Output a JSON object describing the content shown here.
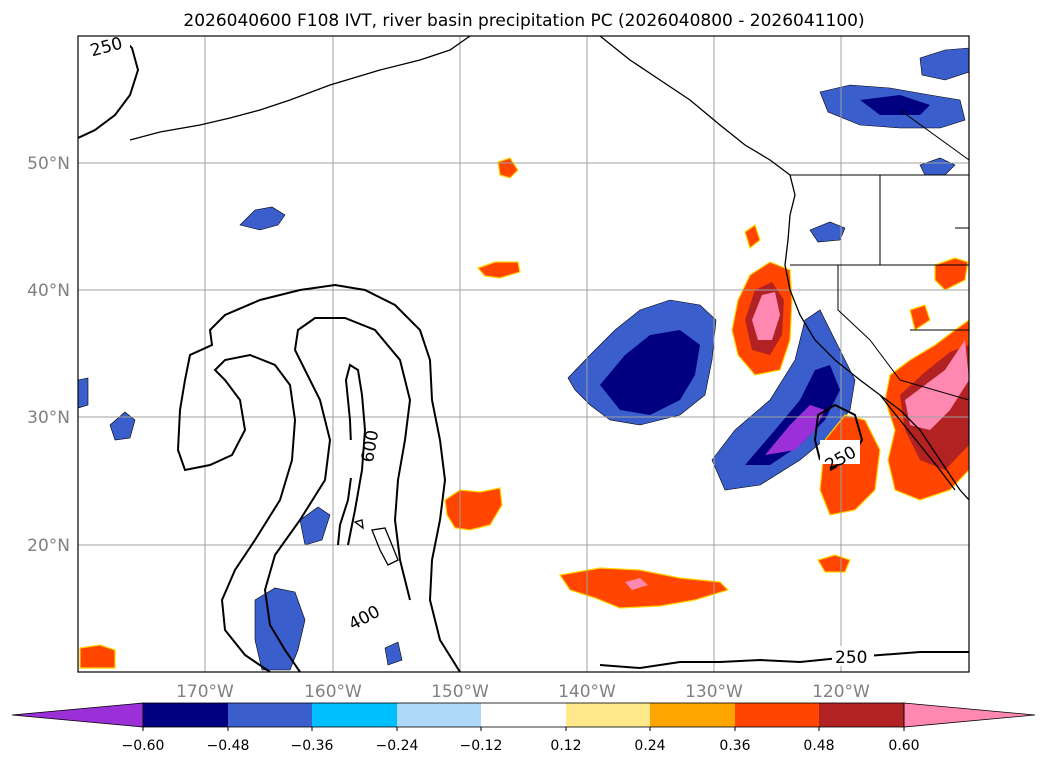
{
  "title": "2026040600 F108 IVT, river basin precipitation PC (2026040800 - 2026041100)",
  "latitude_labels": [
    "50°N",
    "40°N",
    "30°N",
    "20°N"
  ],
  "longitude_labels": [
    "170°W",
    "160°W",
    "150°W",
    "140°W",
    "130°W",
    "120°W"
  ],
  "ivt_contour_labels": [
    "250",
    "600",
    "400",
    "250",
    "250"
  ],
  "colorbar": {
    "tick_labels": [
      "−0.60",
      "−0.48",
      "−0.36",
      "−0.24",
      "−0.12",
      "0.12",
      "0.24",
      "0.36",
      "0.48",
      "0.60"
    ],
    "colors": [
      "#9b30d9",
      "#000080",
      "#3a5fcd",
      "#00bfff",
      "#add8f7",
      "#ffffff",
      "#ffe98a",
      "#ffa500",
      "#ff4500",
      "#b22222",
      "#ff88b0"
    ]
  },
  "colors": {
    "coastline": "#000000",
    "gridline": "#a0a0a0",
    "ivt_contour": "#000000"
  }
}
